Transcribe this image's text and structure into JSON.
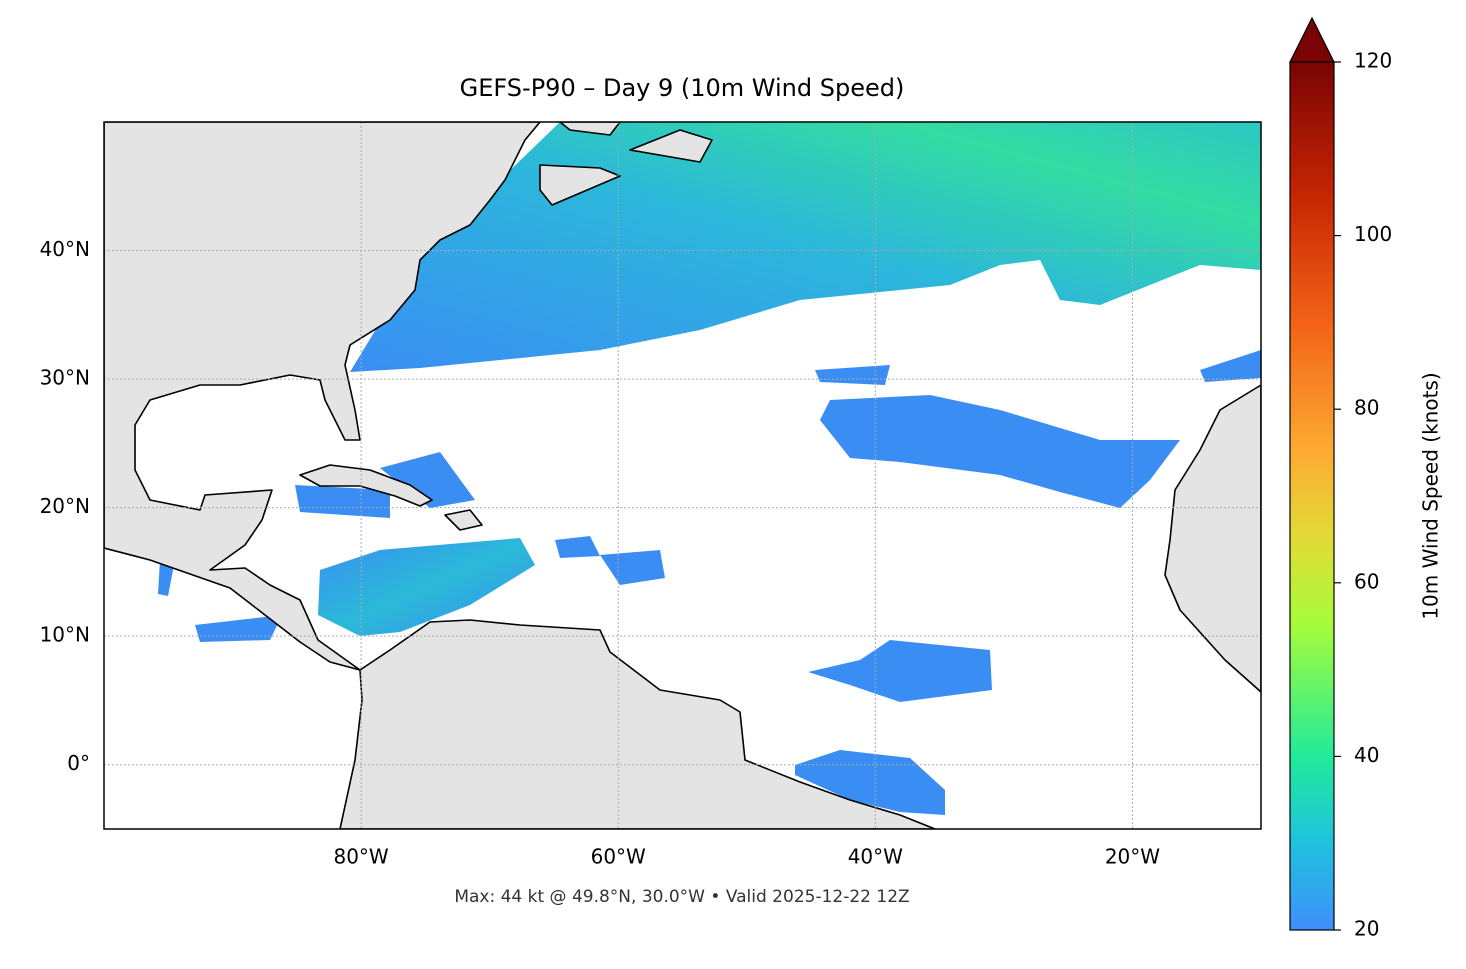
{
  "chart_data": {
    "type": "map",
    "title": "GEFS-P90 – Day 9 (10m Wind Speed)",
    "footnote": "Max: 44 kt @ 49.8°N, 30.0°W • Valid 2025-12-22 12Z",
    "xlim": [
      -100,
      -10
    ],
    "xticks": [
      {
        "value": -80,
        "label": "80°W"
      },
      {
        "value": -60,
        "label": "60°W"
      },
      {
        "value": -40,
        "label": "40°W"
      },
      {
        "value": -20,
        "label": "20°W"
      }
    ],
    "ylim": [
      -5,
      50
    ],
    "yticks": [
      {
        "value": 0,
        "label": "0°"
      },
      {
        "value": 10,
        "label": "10°N"
      },
      {
        "value": 20,
        "label": "20°N"
      },
      {
        "value": 30,
        "label": "30°N"
      },
      {
        "value": 40,
        "label": "40°N"
      }
    ],
    "grid": true,
    "colorbar": {
      "label": "10m Wind Speed (knots)",
      "lim": [
        20,
        120
      ],
      "ticks": [
        20,
        40,
        60,
        80,
        100,
        120
      ]
    }
  }
}
